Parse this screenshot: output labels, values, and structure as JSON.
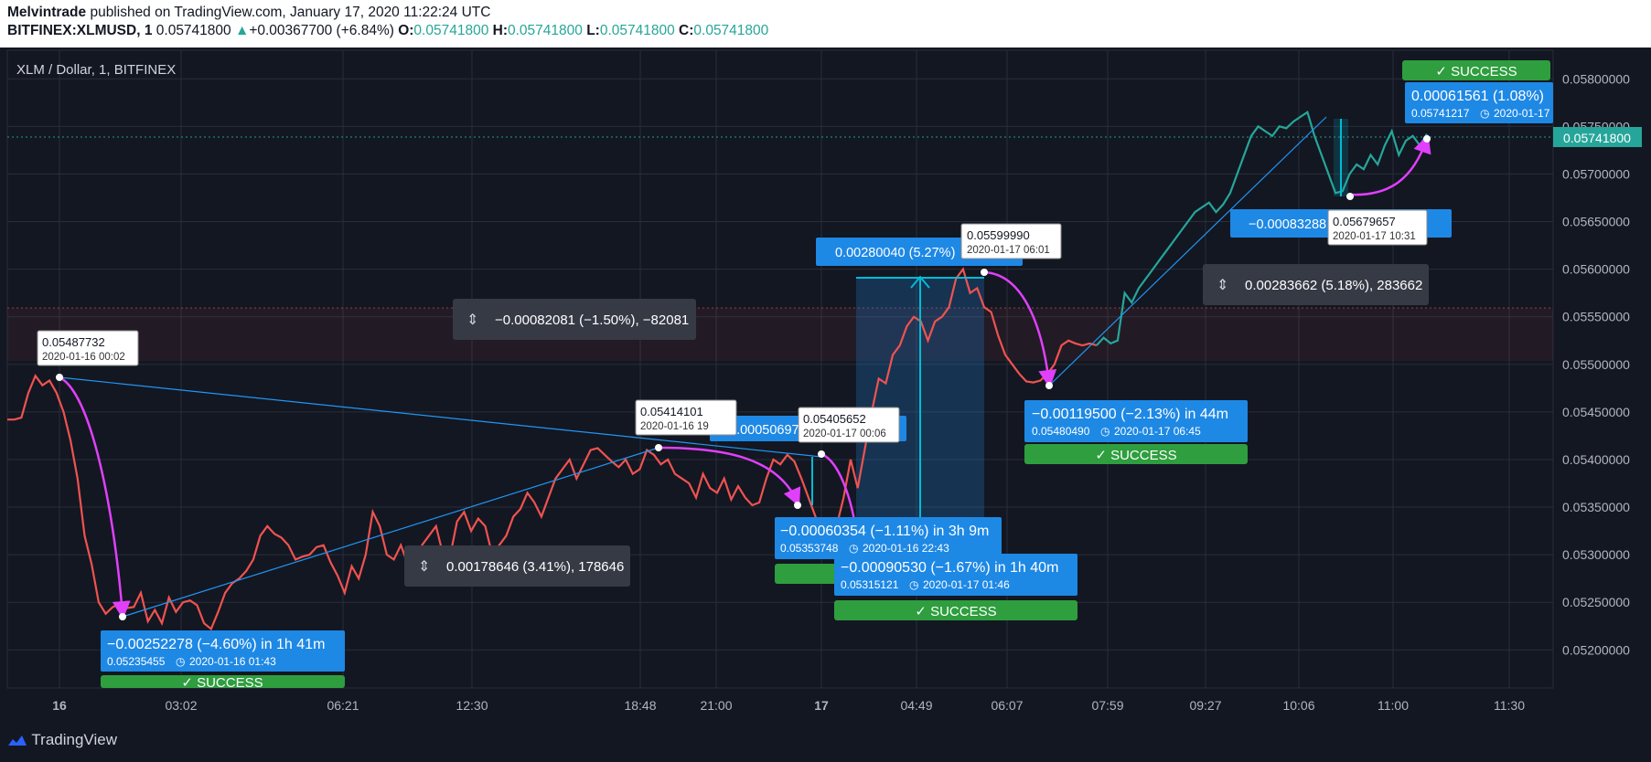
{
  "header": {
    "author": "Melvintrade",
    "published": " published on TradingView.com, January 17, 2020 11:22:24 UTC",
    "symbol": "BITFINEX:XLMUSD, 1",
    "last": "0.05741800",
    "change_arrow": "▲",
    "change": "+0.00367700 (+6.84%)",
    "o_label": "O:",
    "o": "0.05741800",
    "h_label": "H:",
    "h": "0.05741800",
    "l_label": "L:",
    "l": "0.05741800",
    "c_label": "C:",
    "c": "0.05741800"
  },
  "footer": {
    "logo_text": "TradingView"
  },
  "colors": {
    "background": "#131722",
    "grid": "#2a2e39",
    "price_up": "#26a69a",
    "price_down": "#ef5350",
    "arrow": "#e040fb",
    "label_blue": "#1e88e5",
    "success_green": "#2e9e3e",
    "measure": "#00bcd4"
  },
  "chart_data": {
    "type": "line",
    "title": "XLM / Dollar, 1, BITFINEX",
    "xlabel": "",
    "ylabel": "",
    "x_ticks": [
      "16",
      "03:02",
      "06:21",
      "12:30",
      "18:48",
      "21:00",
      "17",
      "04:49",
      "06:07",
      "07:59",
      "09:27",
      "10:06",
      "11:00",
      "11:30"
    ],
    "y_ticks": [
      "0.05800000",
      "0.05750000",
      "0.05700000",
      "0.05650000",
      "0.05600000",
      "0.05550000",
      "0.05500000",
      "0.05450000",
      "0.05400000",
      "0.05350000",
      "0.05300000",
      "0.05250000",
      "0.05200000"
    ],
    "ylim": [
      0.0516,
      0.0583
    ],
    "grid": true,
    "last_price_label": "0.05741800",
    "series": [
      {
        "values": [
          0.05442,
          0.05442,
          0.05444,
          0.0547,
          0.05488,
          0.05478,
          0.05483,
          0.0547,
          0.0545,
          0.0542,
          0.0538,
          0.0532,
          0.0529,
          0.0525,
          0.05238,
          0.05245,
          0.05248,
          0.05244,
          0.05245,
          0.0526,
          0.0523,
          0.05242,
          0.05228,
          0.05255,
          0.0524,
          0.0525,
          0.05252,
          0.05247,
          0.05228,
          0.05222,
          0.0524,
          0.0526,
          0.0527,
          0.05275,
          0.05283,
          0.05295,
          0.0532,
          0.0533,
          0.05322,
          0.05318,
          0.0531,
          0.05295,
          0.05298,
          0.053,
          0.05308,
          0.0531,
          0.05292,
          0.05278,
          0.0526,
          0.05288,
          0.05275,
          0.053,
          0.05345,
          0.0533,
          0.053,
          0.05295,
          0.0531,
          0.0529,
          0.0528,
          0.0531,
          0.0532,
          0.0533,
          0.053,
          0.05298,
          0.05335,
          0.05345,
          0.05325,
          0.05338,
          0.0533,
          0.053,
          0.0531,
          0.0532,
          0.0534,
          0.05348,
          0.05365,
          0.05355,
          0.0534,
          0.0536,
          0.0538,
          0.0539,
          0.054,
          0.0538,
          0.05395,
          0.0541,
          0.05412,
          0.05405,
          0.05398,
          0.05392,
          0.054,
          0.05385,
          0.0539,
          0.0541,
          0.05405,
          0.05395,
          0.054,
          0.05385,
          0.0538,
          0.05375,
          0.0536,
          0.05385,
          0.0537,
          0.05365,
          0.0538,
          0.05358,
          0.05372,
          0.0536,
          0.05352,
          0.05355,
          0.0538,
          0.054,
          0.05395,
          0.05405,
          0.05398,
          0.0538,
          0.0536,
          0.0534,
          0.0532,
          0.05316,
          0.0533,
          0.0536,
          0.054,
          0.0537,
          0.0541,
          0.0545,
          0.05485,
          0.0548,
          0.0551,
          0.0552,
          0.0554,
          0.0555,
          0.05545,
          0.05525,
          0.05545,
          0.0555,
          0.0556,
          0.0559,
          0.056,
          0.05575,
          0.0558,
          0.0556,
          0.05555,
          0.0553,
          0.0551,
          0.055,
          0.0549,
          0.05482,
          0.05481,
          0.05483,
          0.0549,
          0.055,
          0.0552,
          0.05525,
          0.05522,
          0.0552,
          0.05522,
          0.0552,
          0.05528,
          0.05522,
          0.05525,
          0.05575,
          0.05565,
          0.0558,
          0.0559,
          0.056,
          0.0561,
          0.0562,
          0.0563,
          0.0564,
          0.0565,
          0.0566,
          0.05665,
          0.0567,
          0.0566,
          0.05668,
          0.0568,
          0.057,
          0.0572,
          0.0574,
          0.0575,
          0.05745,
          0.0574,
          0.0575,
          0.05748,
          0.05755,
          0.0576,
          0.05765,
          0.0574,
          0.0572,
          0.057,
          0.0568,
          0.05682,
          0.057,
          0.0571,
          0.05705,
          0.0572,
          0.0571,
          0.0573,
          0.05745,
          0.0572,
          0.05735,
          0.0574,
          0.0573,
          0.05742
        ]
      }
    ],
    "annotations": {
      "price_labels": [
        {
          "price": "0.05487732",
          "time": "2020-01-16 00:02"
        },
        {
          "price": "0.05414101",
          "time": "2020-01-16 19"
        },
        {
          "price": "0.05405652",
          "time": "2020-01-17 00:06"
        },
        {
          "price": "0.05599990",
          "time": "2020-01-17 06:01"
        },
        {
          "price": "0.05679657",
          "time": "2020-01-17 10:31"
        }
      ],
      "measure_labels": [
        {
          "text": "−0.00082081 (−1.50%), −82081"
        },
        {
          "text": "0.00178646 (3.41%), 178646"
        },
        {
          "text": "0.00283662 (5.18%), 283662"
        }
      ],
      "blue_labels": [
        {
          "text": "0.00050697",
          "sub": ""
        },
        {
          "text": "0.00280040 (5.27%)",
          "sub": ""
        },
        {
          "text": "−0.00083288",
          "sub": ""
        },
        {
          "text": "−0.00060354 (−1.11%) in 3h 9m",
          "sub": "0.05353748",
          "time": "2020-01-16 22:43"
        },
        {
          "text": "−0.00090530 (−1.67%) in 1h 40m",
          "sub": "0.05315121",
          "time": "2020-01-17 01:46"
        },
        {
          "text": "−0.00119500 (−2.13%) in 44m",
          "sub": "0.05480490",
          "time": "2020-01-17 06:45"
        },
        {
          "text": "0.00061561 (1.08%)",
          "sub": "0.05741217",
          "time": "2020-01-17"
        },
        {
          "text": "−0.00252278 (−4.60%) in 1h 41m",
          "sub": "0.05235455",
          "time": "2020-01-16 01:43"
        }
      ],
      "success_label": "✓ SUCCESS"
    }
  }
}
